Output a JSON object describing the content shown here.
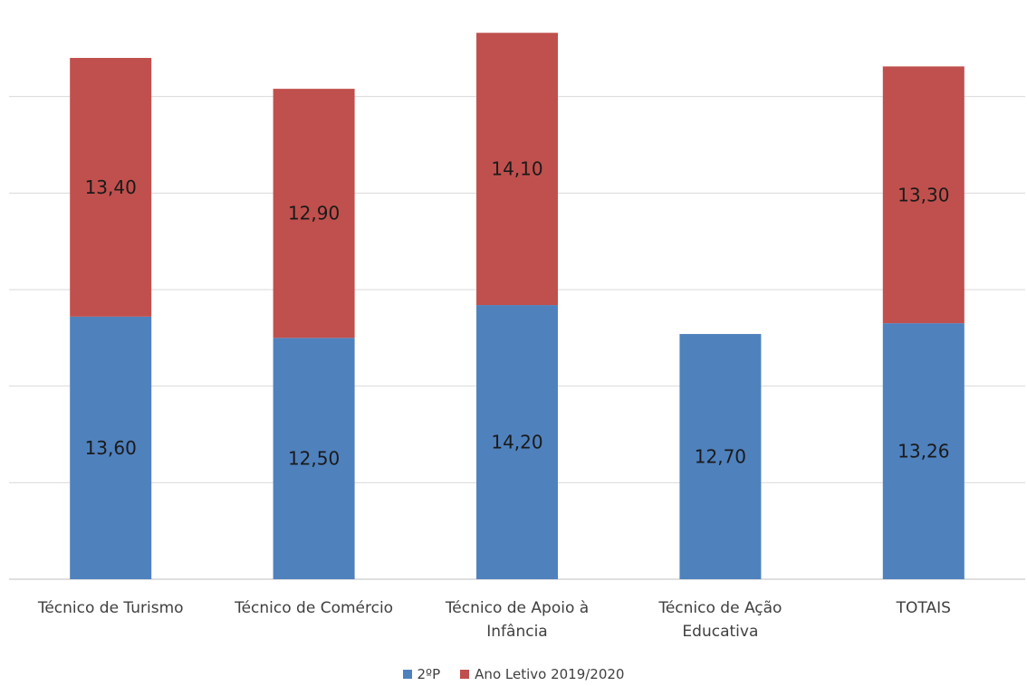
{
  "chart_data": {
    "type": "bar",
    "stacked": true,
    "categories": [
      [
        "Técnico de Turismo"
      ],
      [
        "Técnico de Comércio"
      ],
      [
        "Técnico de Apoio à",
        "Infância"
      ],
      [
        "Técnico de Ação",
        "Educativa"
      ],
      [
        "TOTAIS"
      ]
    ],
    "series": [
      {
        "name": "2ºP",
        "color": "#4f81bd",
        "values": [
          13.6,
          12.5,
          14.2,
          12.7,
          13.26
        ],
        "labels": [
          "13,60",
          "12,50",
          "14,20",
          "12,70",
          "13,26"
        ]
      },
      {
        "name": "Ano Letivo 2019/2020",
        "color": "#c0504d",
        "values": [
          13.4,
          12.9,
          14.1,
          null,
          13.3
        ],
        "labels": [
          "13,40",
          "12,90",
          "14,10",
          "",
          "13,30"
        ]
      }
    ],
    "ylim": [
      0,
      30
    ],
    "grid": true,
    "gridline_step": 5,
    "legend_position": "bottom",
    "title": "",
    "xlabel": "",
    "ylabel": ""
  }
}
